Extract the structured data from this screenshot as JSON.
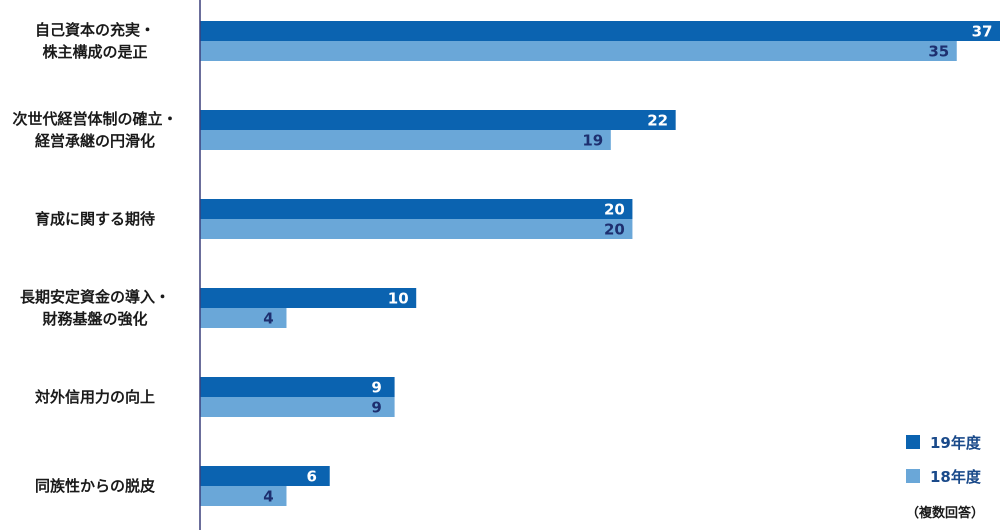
{
  "chart_data": {
    "type": "bar",
    "orientation": "horizontal",
    "categories": [
      [
        "自己資本の充実・",
        "株主構成の是正"
      ],
      [
        "次世代経営体制の確立・",
        "経営承継の円滑化"
      ],
      [
        "育成に関する期待"
      ],
      [
        "長期安定資金の導入・",
        "財務基盤の強化"
      ],
      [
        "対外信用力の向上"
      ],
      [
        "同族性からの脱皮"
      ]
    ],
    "series": [
      {
        "name": "19年度",
        "values": [
          37,
          22,
          20,
          10,
          9,
          6
        ],
        "color": "#0b63b0",
        "label_color": "#ffffff"
      },
      {
        "name": "18年度",
        "values": [
          35,
          19,
          20,
          4,
          9,
          4
        ],
        "color": "#6aa7d8",
        "label_color": "#1d2f6f"
      }
    ],
    "xlim": [
      0,
      37
    ],
    "legend_position": "bottom-right",
    "note": "（複数回答）",
    "axis_color": "#3a3f7a"
  }
}
